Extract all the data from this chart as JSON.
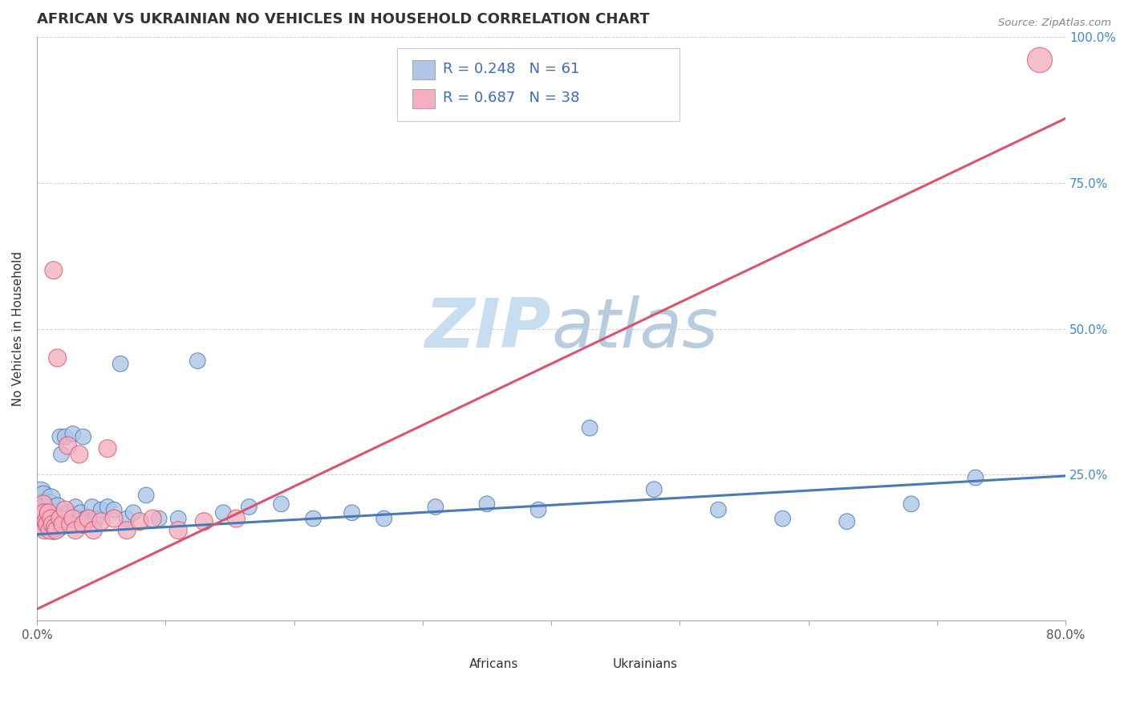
{
  "title": "AFRICAN VS UKRAINIAN NO VEHICLES IN HOUSEHOLD CORRELATION CHART",
  "source": "Source: ZipAtlas.com",
  "ylabel": "No Vehicles in Household",
  "xlim": [
    0.0,
    0.8
  ],
  "ylim": [
    0.0,
    1.0
  ],
  "xticks": [
    0.0,
    0.1,
    0.2,
    0.3,
    0.4,
    0.5,
    0.6,
    0.7,
    0.8
  ],
  "xticklabels": [
    "0.0%",
    "",
    "",
    "",
    "",
    "",
    "",
    "",
    "80.0%"
  ],
  "yticks": [
    0.0,
    0.25,
    0.5,
    0.75,
    1.0
  ],
  "yticklabels": [
    "",
    "25.0%",
    "50.0%",
    "75.0%",
    "100.0%"
  ],
  "african_R": 0.248,
  "african_N": 61,
  "ukrainian_R": 0.687,
  "ukrainian_N": 38,
  "african_color": "#aec6e8",
  "ukrainian_color": "#f4afc0",
  "african_line_color": "#4a7ab5",
  "ukrainian_line_color": "#d9546e",
  "legend_color": "#3b6bbf",
  "africans_x": [
    0.002,
    0.003,
    0.004,
    0.004,
    0.005,
    0.005,
    0.006,
    0.006,
    0.007,
    0.008,
    0.009,
    0.01,
    0.01,
    0.011,
    0.012,
    0.013,
    0.014,
    0.015,
    0.016,
    0.017,
    0.018,
    0.019,
    0.02,
    0.022,
    0.024,
    0.026,
    0.028,
    0.03,
    0.032,
    0.034,
    0.036,
    0.038,
    0.04,
    0.043,
    0.046,
    0.05,
    0.055,
    0.06,
    0.065,
    0.07,
    0.075,
    0.085,
    0.095,
    0.11,
    0.125,
    0.145,
    0.165,
    0.19,
    0.215,
    0.245,
    0.27,
    0.31,
    0.35,
    0.39,
    0.43,
    0.48,
    0.53,
    0.58,
    0.63,
    0.68,
    0.73
  ],
  "africans_y": [
    0.19,
    0.22,
    0.175,
    0.2,
    0.16,
    0.215,
    0.18,
    0.195,
    0.17,
    0.185,
    0.165,
    0.2,
    0.175,
    0.21,
    0.185,
    0.155,
    0.175,
    0.17,
    0.195,
    0.16,
    0.315,
    0.285,
    0.165,
    0.315,
    0.185,
    0.175,
    0.32,
    0.195,
    0.175,
    0.185,
    0.315,
    0.175,
    0.175,
    0.195,
    0.175,
    0.19,
    0.195,
    0.19,
    0.44,
    0.175,
    0.185,
    0.215,
    0.175,
    0.175,
    0.445,
    0.185,
    0.195,
    0.2,
    0.175,
    0.185,
    0.175,
    0.195,
    0.2,
    0.19,
    0.33,
    0.225,
    0.19,
    0.175,
    0.17,
    0.2,
    0.245
  ],
  "africans_size": [
    300,
    350,
    280,
    300,
    260,
    280,
    300,
    280,
    320,
    300,
    280,
    300,
    280,
    280,
    280,
    280,
    280,
    280,
    280,
    280,
    200,
    200,
    280,
    200,
    200,
    200,
    200,
    200,
    200,
    200,
    200,
    200,
    200,
    200,
    200,
    200,
    200,
    200,
    200,
    200,
    200,
    200,
    200,
    200,
    200,
    200,
    200,
    200,
    200,
    200,
    200,
    200,
    200,
    200,
    200,
    200,
    200,
    200,
    200,
    200,
    200
  ],
  "ukrainians_x": [
    0.002,
    0.003,
    0.004,
    0.005,
    0.005,
    0.006,
    0.006,
    0.007,
    0.008,
    0.009,
    0.01,
    0.011,
    0.012,
    0.013,
    0.014,
    0.015,
    0.016,
    0.018,
    0.02,
    0.022,
    0.024,
    0.026,
    0.028,
    0.03,
    0.033,
    0.036,
    0.04,
    0.044,
    0.05,
    0.055,
    0.06,
    0.07,
    0.08,
    0.09,
    0.11,
    0.13,
    0.155,
    0.78
  ],
  "ukrainians_y": [
    0.175,
    0.185,
    0.16,
    0.17,
    0.2,
    0.155,
    0.185,
    0.17,
    0.165,
    0.185,
    0.155,
    0.175,
    0.165,
    0.6,
    0.16,
    0.155,
    0.45,
    0.175,
    0.165,
    0.19,
    0.3,
    0.165,
    0.175,
    0.155,
    0.285,
    0.165,
    0.175,
    0.155,
    0.17,
    0.295,
    0.175,
    0.155,
    0.17,
    0.175,
    0.155,
    0.17,
    0.175,
    0.96
  ],
  "ukrainians_size": [
    250,
    250,
    250,
    250,
    250,
    250,
    250,
    250,
    250,
    250,
    250,
    250,
    250,
    250,
    250,
    250,
    250,
    250,
    250,
    250,
    250,
    250,
    250,
    250,
    250,
    250,
    250,
    250,
    250,
    250,
    250,
    250,
    250,
    250,
    250,
    250,
    250,
    500
  ],
  "african_trend_x": [
    0.0,
    0.8
  ],
  "african_trend_y": [
    0.148,
    0.248
  ],
  "ukrainian_trend_x": [
    0.0,
    0.8
  ],
  "ukrainian_trend_y": [
    0.02,
    0.86
  ]
}
